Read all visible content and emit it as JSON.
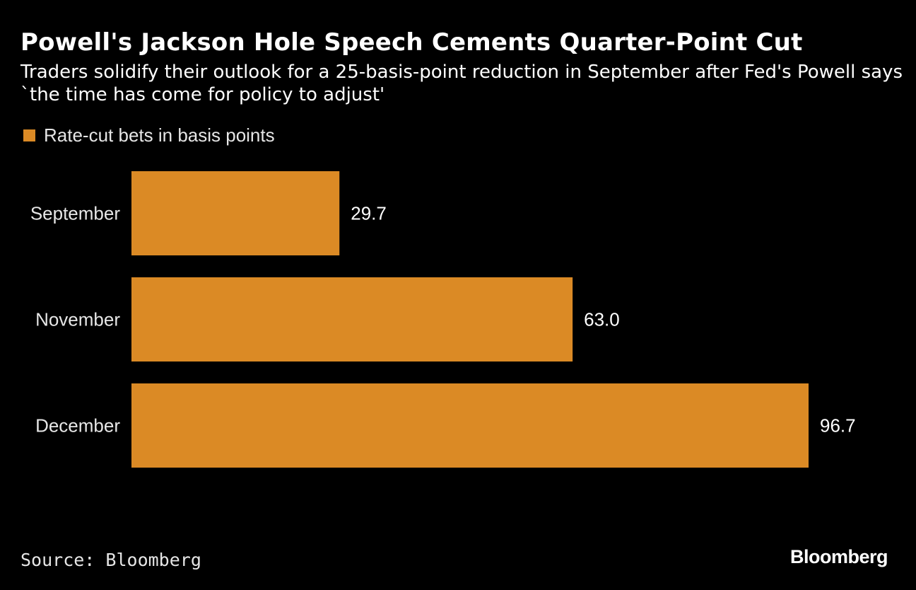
{
  "chart_data": {
    "type": "bar",
    "orientation": "horizontal",
    "title": "Powell's Jackson Hole Speech Cements Quarter-Point Cut",
    "subtitle": "Traders solidify their outlook for a 25-basis-point reduction in September after Fed's Powell says `the time has come for policy to adjust'",
    "categories": [
      "September",
      "November",
      "December"
    ],
    "series": [
      {
        "name": "Rate-cut bets in basis points",
        "values": [
          29.7,
          63.0,
          96.7
        ],
        "color": "#DB8A25"
      }
    ],
    "value_labels": [
      "29.7",
      "63.0",
      "96.7"
    ],
    "xlim": [
      0,
      96.7
    ],
    "grid": false,
    "legend_position": "top-left",
    "xlabel": "",
    "ylabel": ""
  },
  "footer": {
    "source": "Source: Bloomberg",
    "logo": "Bloomberg"
  }
}
